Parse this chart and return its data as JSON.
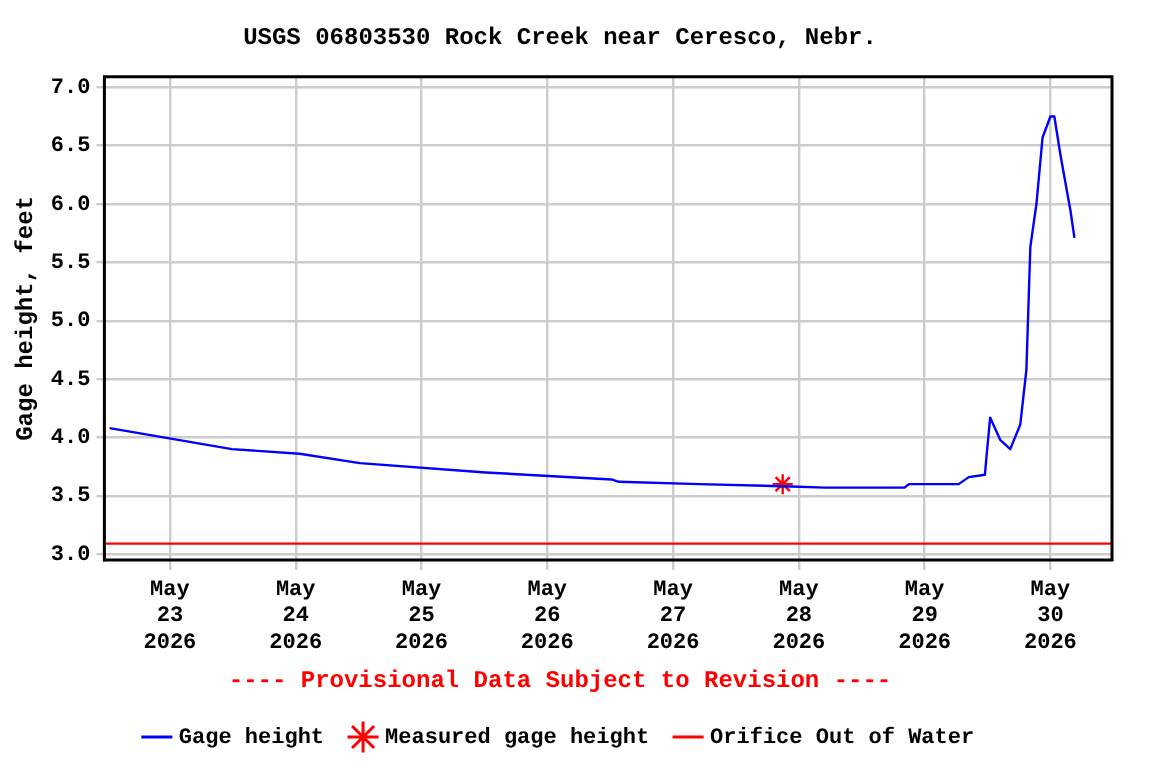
{
  "chart_data": {
    "type": "line",
    "title": "USGS 06803530 Rock Creek near Ceresco, Nebr.",
    "ylabel": "Gage height, feet",
    "annotations": [
      "---- Provisional Data Subject to Revision ----"
    ],
    "xlim": [
      "2026-05-22T11:30",
      "2026-05-30T11:45"
    ],
    "xticks": [
      {
        "value": "2026-05-23",
        "label": "May\n23\n2026"
      },
      {
        "value": "2026-05-24",
        "label": "May\n24\n2026"
      },
      {
        "value": "2026-05-25",
        "label": "May\n25\n2026"
      },
      {
        "value": "2026-05-26",
        "label": "May\n26\n2026"
      },
      {
        "value": "2026-05-27",
        "label": "May\n27\n2026"
      },
      {
        "value": "2026-05-28",
        "label": "May\n28\n2026"
      },
      {
        "value": "2026-05-29",
        "label": "May\n29\n2026"
      },
      {
        "value": "2026-05-30",
        "label": "May\n30\n2026"
      }
    ],
    "ylim": [
      2.95,
      7.09
    ],
    "yticks": [
      {
        "value": 3,
        "label": "3.0"
      },
      {
        "value": 3.5,
        "label": "3.5"
      },
      {
        "value": 4,
        "label": "4.0"
      },
      {
        "value": 4.5,
        "label": "4.5"
      },
      {
        "value": 5,
        "label": "5.0"
      },
      {
        "value": 5.5,
        "label": "5.5"
      },
      {
        "value": 6,
        "label": "6.0"
      },
      {
        "value": 6.5,
        "label": "6.5"
      },
      {
        "value": 7,
        "label": "7.0"
      }
    ],
    "grid": true,
    "legend": "bottom",
    "series": [
      {
        "name": "Gage height",
        "color": "#0000ff",
        "marker": "none",
        "x": [
          "2026-05-22T12:30",
          "2026-05-23T11:50",
          "2026-05-24T00:45",
          "2026-05-24T12:15",
          "2026-05-25T12:15",
          "2026-05-26T12:15",
          "2026-05-26T13:40",
          "2026-05-27T05:00",
          "2026-05-27T22:35",
          "2026-05-28T05:00",
          "2026-05-28T20:10",
          "2026-05-28T21:00",
          "2026-05-29T06:30",
          "2026-05-29T08:25",
          "2026-05-29T11:30",
          "2026-05-29T11:50",
          "2026-05-29T12:30",
          "2026-05-29T14:25",
          "2026-05-29T16:20",
          "2026-05-29T18:15",
          "2026-05-29T19:25",
          "2026-05-29T20:10",
          "2026-05-29T21:20",
          "2026-05-29T22:30",
          "2026-05-30T00:00",
          "2026-05-30T00:45",
          "2026-05-30T01:55",
          "2026-05-30T03:50",
          "2026-05-30T04:35"
        ],
        "values": [
          4.08,
          3.9,
          3.86,
          3.78,
          3.7,
          3.64,
          3.62,
          3.6,
          3.58,
          3.57,
          3.57,
          3.6,
          3.6,
          3.66,
          3.68,
          3.85,
          4.17,
          3.98,
          3.9,
          4.11,
          4.58,
          5.63,
          6.0,
          6.57,
          6.75,
          6.75,
          6.42,
          5.94,
          5.71
        ]
      },
      {
        "name": "Measured gage height",
        "type": "scatter",
        "color": "#ff0000",
        "marker": "cross",
        "x": [
          "2026-05-27T20:55"
        ],
        "values": [
          3.6
        ]
      }
    ],
    "ref_lines": [
      {
        "axis": "y",
        "value": 3.09,
        "label": "Orifice Out of Water",
        "color": "#ff0000",
        "line_style": "solid"
      }
    ]
  }
}
